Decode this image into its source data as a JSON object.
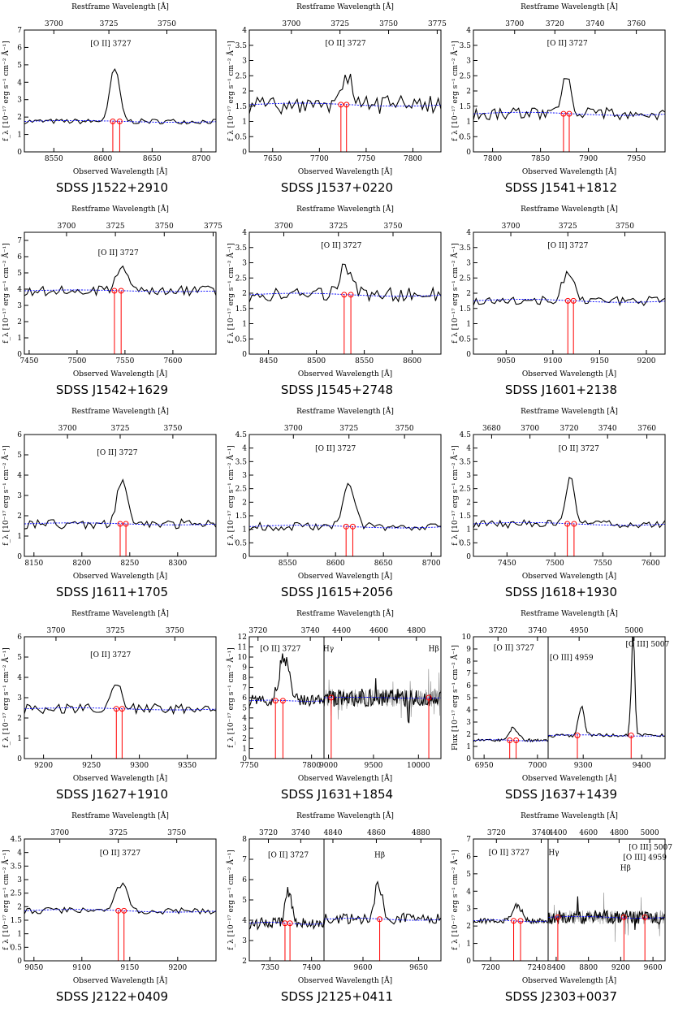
{
  "figure": {
    "common": {
      "top_axis_label": "Restframe Wavelength [Å]",
      "bottom_axis_label": "Observed Wavelength [Å]",
      "y_axis_label": "f_λ [10⁻¹⁷ erg s⁻¹ cm⁻² Å⁻¹]",
      "y_axis_label_flux": "Flux [10⁻¹⁷ erg s⁻¹ cm⁻² Å⁻¹]",
      "colors": {
        "spectrum": "#000000",
        "continuum": "#0000ff",
        "line_marker": "#ff0000",
        "noise": "#888888"
      }
    }
  },
  "chart_data": [
    {
      "type": "line",
      "title": "SDSS J1522+2910",
      "ylim": [
        0,
        7
      ],
      "ylabel_variant": "f",
      "panels": [
        {
          "xlim": [
            8520,
            8715
          ],
          "xticks": [
            8550,
            8600,
            8650,
            8700
          ],
          "top_ticks": [
            {
              "label": "3700",
              "x": 8550
            },
            {
              "label": "3725",
              "x": 8606
            },
            {
              "label": "3750",
              "x": 8665
            }
          ],
          "line_labels": [
            {
              "text": "[O II] 3727",
              "x": 8608,
              "y": 6.1
            }
          ],
          "markers": [
            8610,
            8617
          ],
          "continuum": 1.75,
          "noise": 0.15,
          "peak": {
            "center": 8612,
            "height": 2.95,
            "width": 5
          }
        }
      ]
    },
    {
      "type": "line",
      "title": "SDSS J1537+0220",
      "ylim": [
        0,
        4
      ],
      "ylabel_variant": "f",
      "panels": [
        {
          "xlim": [
            7625,
            7830
          ],
          "xticks": [
            7650,
            7700,
            7750,
            7800
          ],
          "top_ticks": [
            {
              "label": "3700",
              "x": 7670
            },
            {
              "label": "3725",
              "x": 7722
            },
            {
              "label": "3750",
              "x": 7774
            },
            {
              "label": "3775",
              "x": 7826
            }
          ],
          "line_labels": [
            {
              "text": "[O II] 3727",
              "x": 7728,
              "y": 3.5
            }
          ],
          "markers": [
            7723,
            7729
          ],
          "continuum": 1.55,
          "noise": 0.3,
          "peak": {
            "center": 7730,
            "height": 1.0,
            "width": 6
          }
        }
      ]
    },
    {
      "type": "line",
      "title": "SDSS J1541+1812",
      "ylim": [
        0,
        4
      ],
      "ylabel_variant": "f",
      "panels": [
        {
          "xlim": [
            7780,
            7980
          ],
          "xticks": [
            7800,
            7850,
            7900,
            7950
          ],
          "top_ticks": [
            {
              "label": "3700",
              "x": 7823
            },
            {
              "label": "3720",
              "x": 7865
            },
            {
              "label": "3740",
              "x": 7907
            },
            {
              "label": "3760",
              "x": 7950
            }
          ],
          "line_labels": [
            {
              "text": "[O II] 3727",
              "x": 7878,
              "y": 3.5
            }
          ],
          "markers": [
            7874,
            7880
          ],
          "continuum": 1.25,
          "noise": 0.2,
          "peak": {
            "center": 7877,
            "height": 1.2,
            "width": 5
          }
        }
      ]
    },
    {
      "type": "line",
      "title": "SDSS J1542+1629",
      "ylim": [
        0,
        7.5
      ],
      "ylabel_variant": "f",
      "panels": [
        {
          "xlim": [
            7445,
            7645
          ],
          "xticks": [
            7450,
            7500,
            7550,
            7600
          ],
          "top_ticks": [
            {
              "label": "3700",
              "x": 7489
            },
            {
              "label": "3725",
              "x": 7540
            },
            {
              "label": "3750",
              "x": 7591
            },
            {
              "label": "3775",
              "x": 7642
            }
          ],
          "line_labels": [
            {
              "text": "[O II] 3727",
              "x": 7543,
              "y": 6.1
            }
          ],
          "markers": [
            7539,
            7546
          ],
          "continuum": 3.9,
          "noise": 0.3,
          "peak": {
            "center": 7546,
            "height": 1.4,
            "width": 6
          }
        }
      ]
    },
    {
      "type": "line",
      "title": "SDSS J1545+2748",
      "ylim": [
        0,
        4
      ],
      "ylabel_variant": "f",
      "panels": [
        {
          "xlim": [
            8430,
            8630
          ],
          "xticks": [
            8450,
            8500,
            8550,
            8600
          ],
          "top_ticks": [
            {
              "label": "3700",
              "x": 8466
            },
            {
              "label": "3725",
              "x": 8523
            },
            {
              "label": "3750",
              "x": 8580
            }
          ],
          "line_labels": [
            {
              "text": "[O II] 3727",
              "x": 8526,
              "y": 3.5
            }
          ],
          "markers": [
            8529,
            8536
          ],
          "continuum": 1.95,
          "noise": 0.25,
          "peak": {
            "center": 8530,
            "height": 0.9,
            "width": 6
          }
        }
      ]
    },
    {
      "type": "line",
      "title": "SDSS J1601+2138",
      "ylim": [
        0,
        4
      ],
      "ylabel_variant": "f",
      "panels": [
        {
          "xlim": [
            9015,
            9220
          ],
          "xticks": [
            9050,
            9100,
            9150,
            9200
          ],
          "top_ticks": [
            {
              "label": "3700",
              "x": 9055
            },
            {
              "label": "3725",
              "x": 9116
            },
            {
              "label": "3750",
              "x": 9177
            }
          ],
          "line_labels": [
            {
              "text": "[O II] 3727",
              "x": 9116,
              "y": 3.5
            }
          ],
          "markers": [
            9116,
            9122
          ],
          "continuum": 1.75,
          "noise": 0.15,
          "peak": {
            "center": 9116,
            "height": 0.9,
            "width": 6
          }
        }
      ]
    },
    {
      "type": "line",
      "title": "SDSS J1611+1705",
      "ylim": [
        0,
        6
      ],
      "ylabel_variant": "f",
      "panels": [
        {
          "xlim": [
            8140,
            8340
          ],
          "xticks": [
            8150,
            8200,
            8250,
            8300
          ],
          "top_ticks": [
            {
              "label": "3700",
              "x": 8185
            },
            {
              "label": "3725",
              "x": 8240
            },
            {
              "label": "3750",
              "x": 8295
            }
          ],
          "line_labels": [
            {
              "text": "[O II] 3727",
              "x": 8237,
              "y": 5.0
            }
          ],
          "markers": [
            8240,
            8246
          ],
          "continuum": 1.6,
          "noise": 0.25,
          "peak": {
            "center": 8242,
            "height": 2.4,
            "width": 5
          }
        }
      ]
    },
    {
      "type": "line",
      "title": "SDSS J1615+2056",
      "ylim": [
        0,
        4.5
      ],
      "ylabel_variant": "f",
      "panels": [
        {
          "xlim": [
            8510,
            8710
          ],
          "xticks": [
            8550,
            8600,
            8650,
            8700
          ],
          "top_ticks": [
            {
              "label": "3700",
              "x": 8556
            },
            {
              "label": "3725",
              "x": 8614
            },
            {
              "label": "3750",
              "x": 8672
            }
          ],
          "line_labels": [
            {
              "text": "[O II] 3727",
              "x": 8600,
              "y": 3.9
            }
          ],
          "markers": [
            8611,
            8618
          ],
          "continuum": 1.1,
          "noise": 0.15,
          "peak": {
            "center": 8614,
            "height": 1.6,
            "width": 6
          }
        }
      ]
    },
    {
      "type": "line",
      "title": "SDSS J1618+1930",
      "ylim": [
        0,
        4.5
      ],
      "ylabel_variant": "f",
      "panels": [
        {
          "xlim": [
            7415,
            7615
          ],
          "xticks": [
            7450,
            7500,
            7550,
            7600
          ],
          "top_ticks": [
            {
              "label": "3680",
              "x": 7434
            },
            {
              "label": "3700",
              "x": 7474
            },
            {
              "label": "3720",
              "x": 7515
            },
            {
              "label": "3740",
              "x": 7555
            },
            {
              "label": "3760",
              "x": 7596
            }
          ],
          "line_labels": [
            {
              "text": "[O II] 3727",
              "x": 7525,
              "y": 3.9
            }
          ],
          "markers": [
            7513,
            7520
          ],
          "continuum": 1.2,
          "noise": 0.15,
          "peak": {
            "center": 7516,
            "height": 1.6,
            "width": 5
          }
        }
      ]
    },
    {
      "type": "line",
      "title": "SDSS J1627+1910",
      "ylim": [
        0,
        6
      ],
      "ylabel_variant": "f",
      "panels": [
        {
          "xlim": [
            9180,
            9380
          ],
          "xticks": [
            9200,
            9250,
            9300,
            9350
          ],
          "top_ticks": [
            {
              "label": "3700",
              "x": 9213
            },
            {
              "label": "3725",
              "x": 9275
            },
            {
              "label": "3750",
              "x": 9337
            }
          ],
          "line_labels": [
            {
              "text": "[O II] 3727",
              "x": 9270,
              "y": 5.0
            }
          ],
          "markers": [
            9276,
            9282
          ],
          "continuum": 2.45,
          "noise": 0.25,
          "peak": {
            "center": 9276,
            "height": 1.3,
            "width": 6
          }
        }
      ]
    },
    {
      "type": "line",
      "title": "SDSS J1631+1854",
      "ylim": [
        0,
        12
      ],
      "ylabel_variant": "f",
      "panels": [
        {
          "xlim": [
            7750,
            7810
          ],
          "xticks": [
            7750,
            7800
          ],
          "top_ticks": [
            {
              "label": "3720",
              "x": 7757
            },
            {
              "label": "3740",
              "x": 7799
            }
          ],
          "line_labels": [
            {
              "text": "[O II] 3727",
              "x": 7775,
              "y": 10.6
            }
          ],
          "markers": [
            7771,
            7777
          ],
          "continuum": 5.7,
          "noise": 0.6,
          "peak": {
            "center": 7778,
            "height": 4.2,
            "width": 4
          }
        },
        {
          "xlim": [
            8950,
            10250
          ],
          "xticks": [
            9000,
            9500,
            10000
          ],
          "top_ticks": [
            {
              "label": "4400",
              "x": 9145
            },
            {
              "label": "4600",
              "x": 9561
            },
            {
              "label": "4800",
              "x": 9977
            }
          ],
          "line_labels": [
            {
              "text": "Hγ",
              "x": 9000,
              "y": 10.6
            },
            {
              "text": "Hβ",
              "x": 10170,
              "y": 10.6
            }
          ],
          "markers": [
            9030,
            10115
          ],
          "continuum": 6.0,
          "noise": 0.9,
          "noisy": true
        }
      ]
    },
    {
      "type": "line",
      "title": "SDSS J1637+1439",
      "ylim": [
        0,
        10
      ],
      "ylabel_variant": "flux",
      "panels": [
        {
          "xlim": [
            6940,
            7010
          ],
          "xticks": [
            6950,
            7000
          ],
          "top_ticks": [
            {
              "label": "3720",
              "x": 6963
            },
            {
              "label": "3740",
              "x": 7000
            }
          ],
          "line_labels": [
            {
              "text": "[O II] 3727",
              "x": 6978,
              "y": 8.9
            }
          ],
          "markers": [
            6974,
            6980
          ],
          "continuum": 1.5,
          "noise": 0.12,
          "peak": {
            "center": 6978,
            "height": 1.0,
            "width": 4
          }
        },
        {
          "xlim": [
            9240,
            9440
          ],
          "xticks": [
            9300,
            9400
          ],
          "top_ticks": [
            {
              "label": "4950",
              "x": 9293
            },
            {
              "label": "5000",
              "x": 9387
            }
          ],
          "line_labels": [
            {
              "text": "[O III] 5007",
              "x": 9410,
              "y": 9.2
            },
            {
              "text": "[O III] 4959",
              "x": 9280,
              "y": 8.1
            }
          ],
          "markers": [
            9290,
            9382
          ],
          "continuum": 1.9,
          "noise": 0.15,
          "peaks": [
            {
              "center": 9297,
              "height": 2.4,
              "width": 5
            },
            {
              "center": 9385,
              "height": 8.0,
              "width": 3
            }
          ]
        }
      ]
    },
    {
      "type": "line",
      "title": "SDSS J2122+0409",
      "ylim": [
        0,
        4.5
      ],
      "ylabel_variant": "f",
      "panels": [
        {
          "xlim": [
            9040,
            9240
          ],
          "xticks": [
            9050,
            9100,
            9150,
            9200
          ],
          "top_ticks": [
            {
              "label": "3700",
              "x": 9077
            },
            {
              "label": "3725",
              "x": 9138
            },
            {
              "label": "3750",
              "x": 9199
            }
          ],
          "line_labels": [
            {
              "text": "[O II] 3727",
              "x": 9140,
              "y": 3.9
            }
          ],
          "markers": [
            9138,
            9144
          ],
          "continuum": 1.85,
          "noise": 0.12,
          "peak": {
            "center": 9141,
            "height": 1.0,
            "width": 6
          }
        }
      ]
    },
    {
      "type": "line",
      "title": "SDSS J2125+0411",
      "ylim": [
        2,
        8
      ],
      "ylabel_variant": "f",
      "panels": [
        {
          "xlim": [
            7325,
            7415
          ],
          "xticks": [
            7350,
            7400
          ],
          "top_ticks": [
            {
              "label": "3720",
              "x": 7348
            },
            {
              "label": "3740",
              "x": 7387
            }
          ],
          "line_labels": [
            {
              "text": "[O II] 3727",
              "x": 7372,
              "y": 7.1
            }
          ],
          "markers": [
            7368,
            7374
          ],
          "continuum": 3.85,
          "noise": 0.3,
          "peak": {
            "center": 7372,
            "height": 1.5,
            "width": 4
          }
        },
        {
          "xlim": [
            9565,
            9670
          ],
          "xticks": [
            9600,
            9650
          ],
          "top_ticks": [
            {
              "label": "4840",
              "x": 9573
            },
            {
              "label": "4860",
              "x": 9612
            },
            {
              "label": "4880",
              "x": 9652
            }
          ],
          "line_labels": [
            {
              "text": "Hβ",
              "x": 9615,
              "y": 7.1
            }
          ],
          "markers": [
            9615
          ],
          "continuum": 4.05,
          "noise": 0.3,
          "peak": {
            "center": 9614,
            "height": 1.8,
            "width": 3
          }
        }
      ]
    },
    {
      "type": "line",
      "title": "SDSS J2303+0037",
      "ylim": [
        0,
        7
      ],
      "ylabel_variant": "f",
      "panels": [
        {
          "xlim": [
            7185,
            7250
          ],
          "xticks": [
            7200,
            7240
          ],
          "top_ticks": [
            {
              "label": "3720",
              "x": 7205
            },
            {
              "label": "3740",
              "x": 7244
            }
          ],
          "line_labels": [
            {
              "text": "[O II] 3727",
              "x": 7216,
              "y": 6.1
            }
          ],
          "markers": [
            7220,
            7226
          ],
          "continuum": 2.3,
          "noise": 0.15,
          "peak": {
            "center": 7223,
            "height": 0.9,
            "width": 4
          }
        },
        {
          "xlim": [
            8300,
            9750
          ],
          "xticks": [
            8400,
            8800,
            9200,
            9600
          ],
          "top_ticks": [
            {
              "label": "4400",
              "x": 8420
            },
            {
              "label": "4600",
              "x": 8800
            },
            {
              "label": "4800",
              "x": 9180
            },
            {
              "label": "5000",
              "x": 9560
            }
          ],
          "line_labels": [
            {
              "text": "Hγ",
              "x": 8370,
              "y": 6.1
            },
            {
              "text": "[O III] 5007",
              "x": 9570,
              "y": 6.4
            },
            {
              "text": "[O III] 4959",
              "x": 9500,
              "y": 5.8
            },
            {
              "text": "Hβ",
              "x": 9260,
              "y": 5.2
            }
          ],
          "markers": [
            8420,
            9240,
            9500
          ],
          "continuum": 2.5,
          "noise": 0.4,
          "noisy": true
        }
      ]
    }
  ]
}
